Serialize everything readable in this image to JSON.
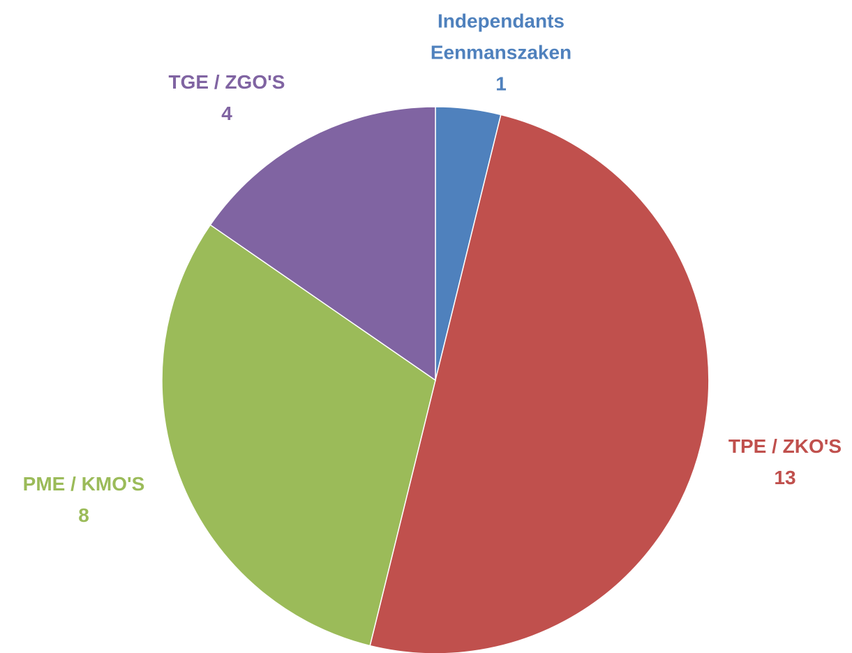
{
  "chart_data": {
    "type": "pie",
    "categories": [
      "Independants Eenmanszaken",
      "TPE / ZKO'S",
      "PME / KMO'S",
      "TGE / ZGO'S"
    ],
    "values": [
      1,
      13,
      8,
      4
    ],
    "colors": [
      "#4f81bd",
      "#c0504d",
      "#9bbb59",
      "#8064a2"
    ]
  }
}
